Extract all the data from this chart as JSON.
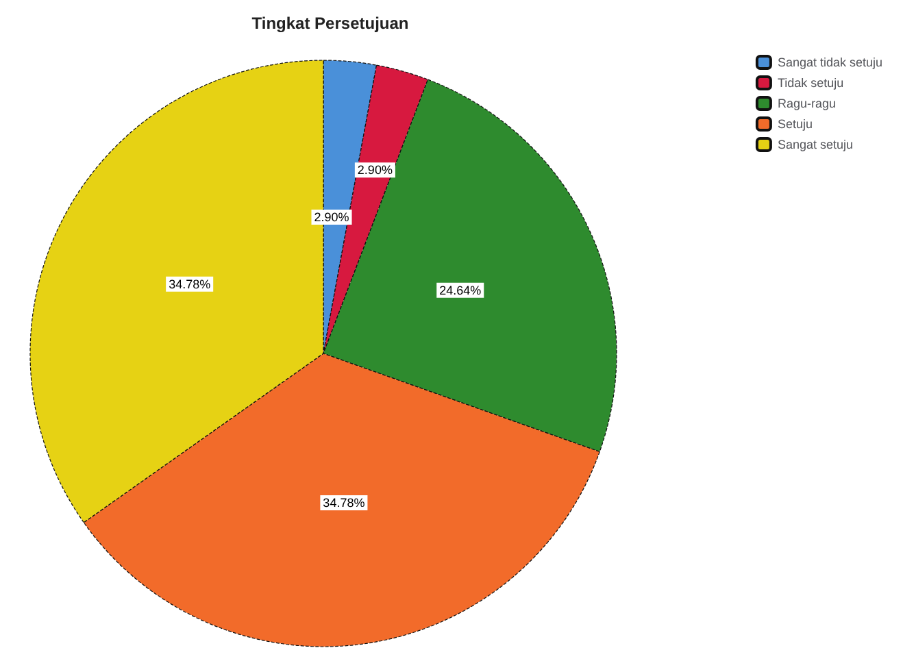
{
  "chart_data": {
    "type": "pie",
    "title": "Tingkat Persetujuan",
    "categories": [
      "Sangat tidak setuju",
      "Tidak setuju",
      "Ragu-ragu",
      "Setuju",
      "Sangat setuju"
    ],
    "values": [
      2.9,
      2.9,
      24.64,
      34.78,
      34.78
    ],
    "value_labels": [
      "2.90%",
      "2.90%",
      "24.64%",
      "34.78%",
      "34.78%"
    ],
    "colors": [
      "#4a90d9",
      "#d7193f",
      "#2e8b2e",
      "#f26b2a",
      "#e6d214"
    ],
    "legend": "top right"
  }
}
